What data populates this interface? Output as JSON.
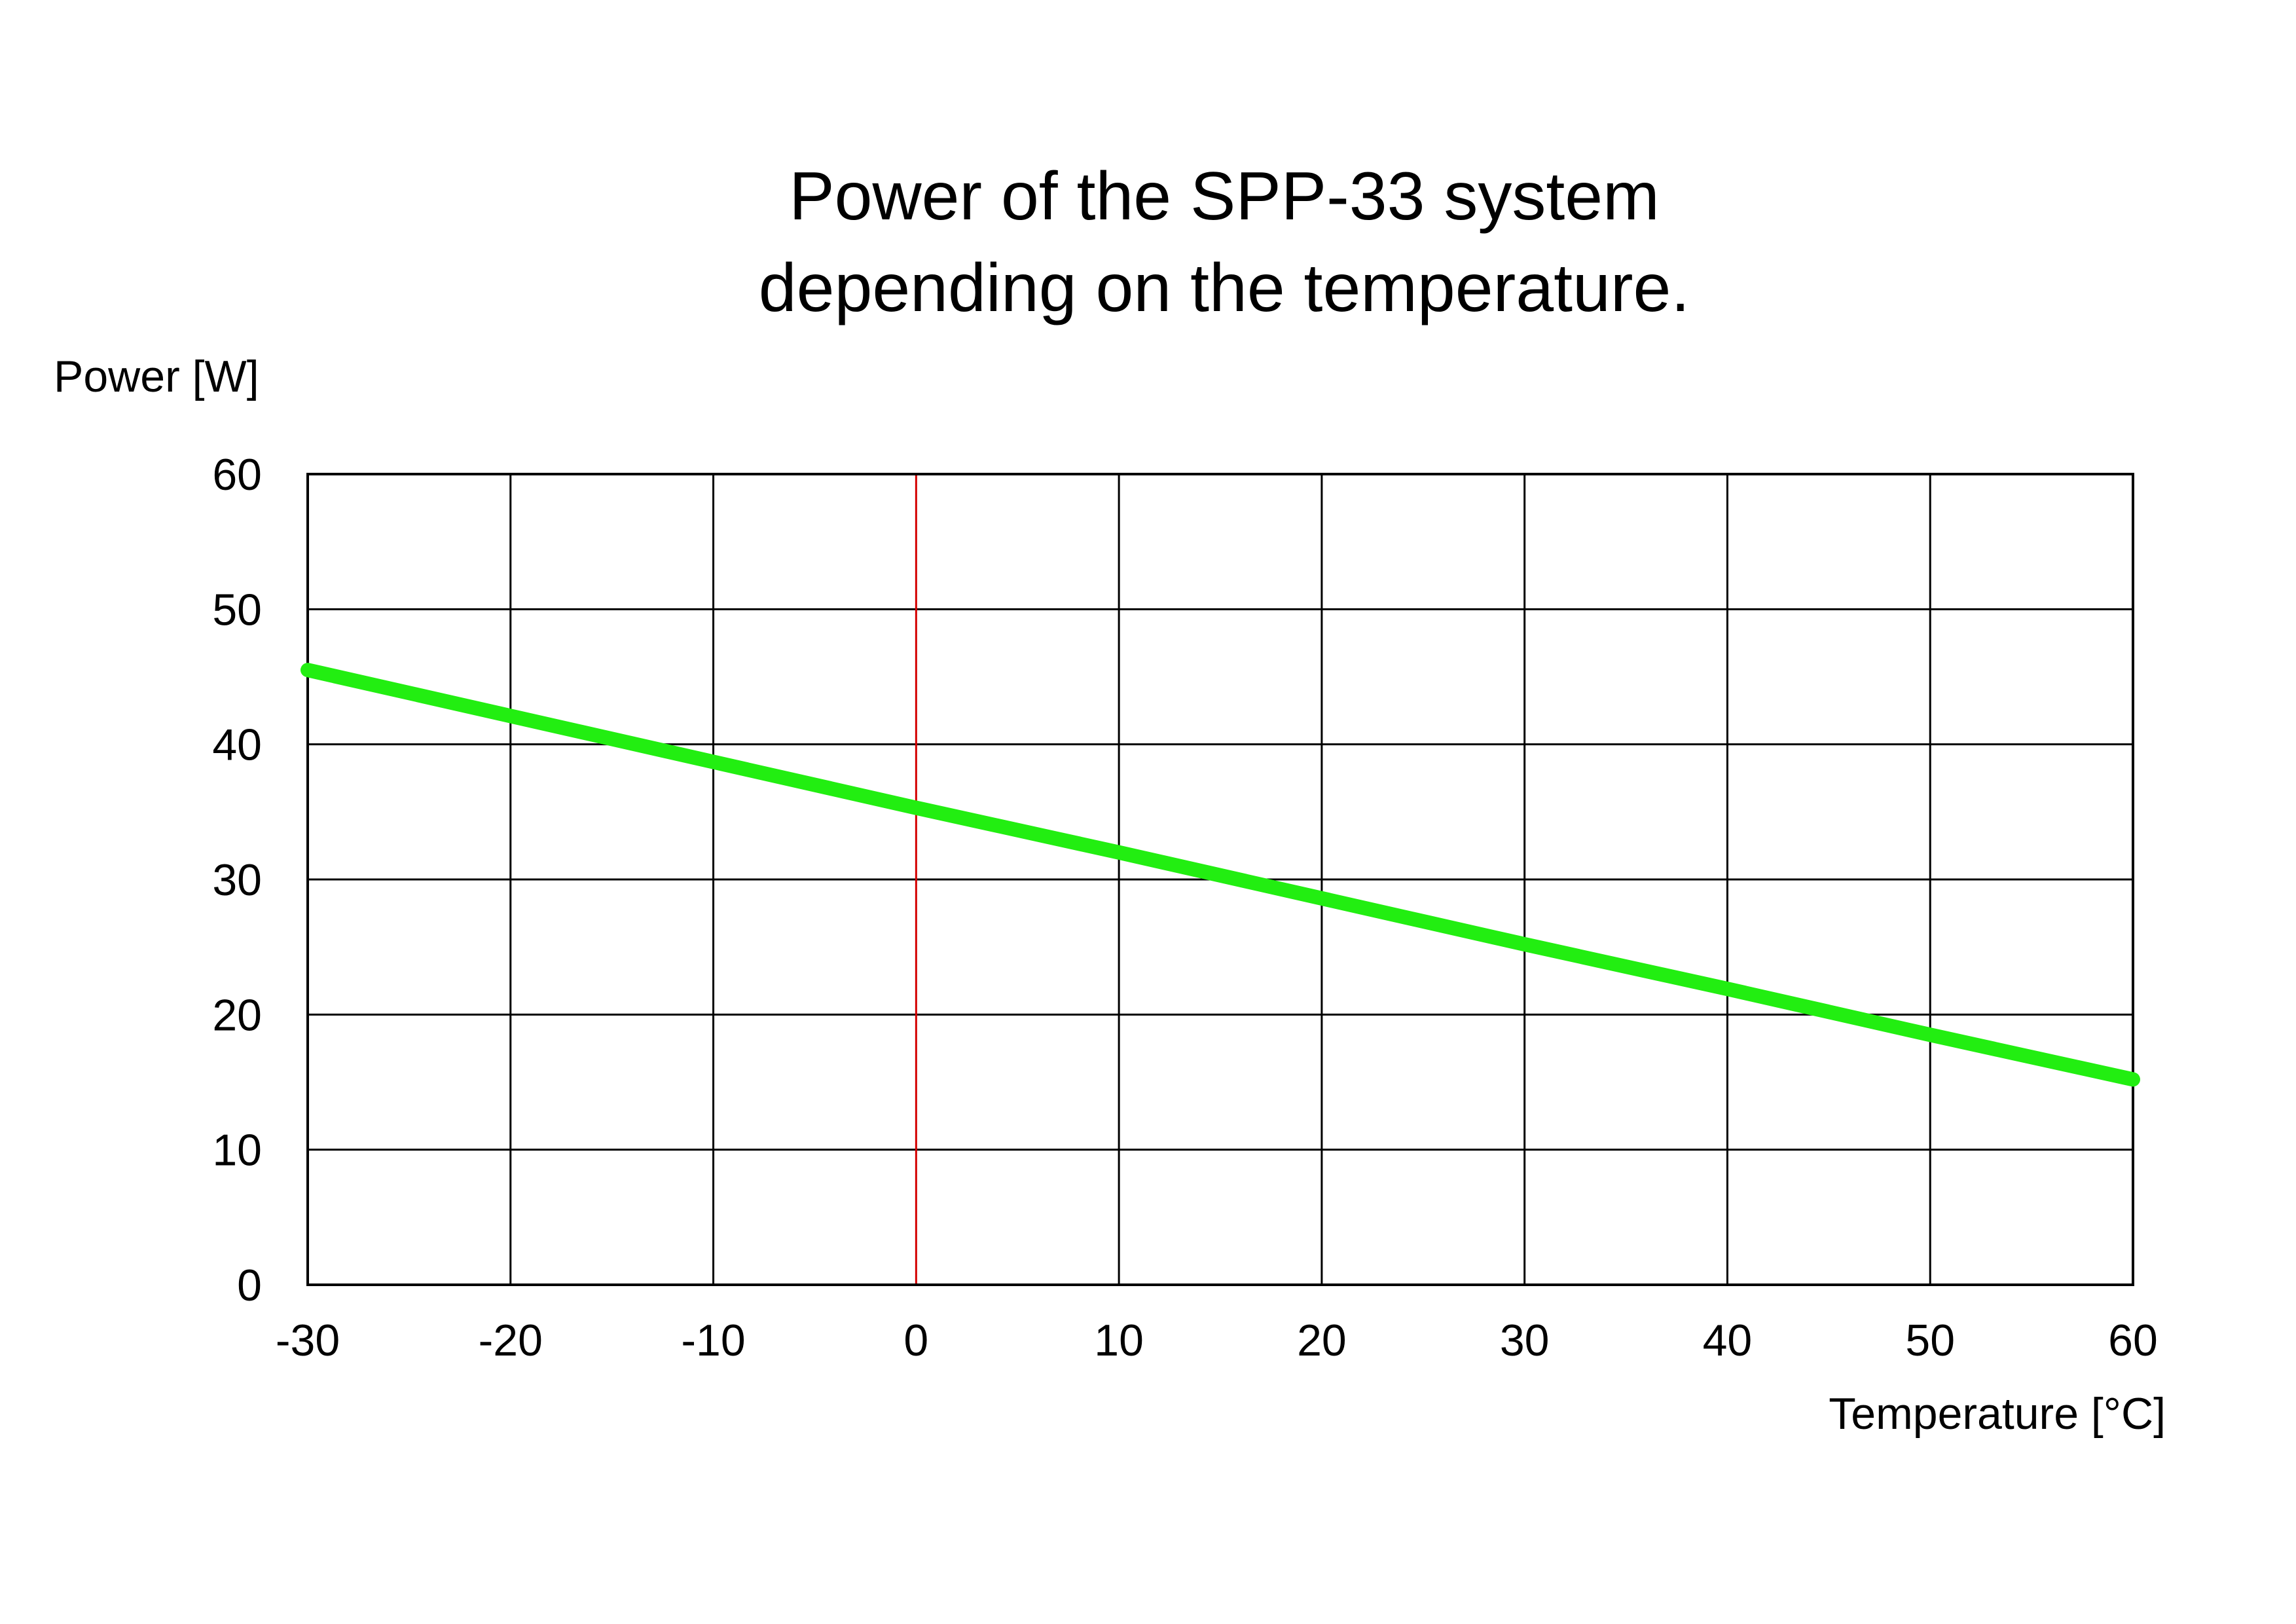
{
  "chart_data": {
    "type": "line",
    "title_lines": [
      "Power of the SPP-33 system",
      "depending on the temperature."
    ],
    "xlabel": "Temperature [°C]",
    "ylabel": "Power [W]",
    "xlim": [
      -30,
      60
    ],
    "ylim": [
      0,
      60
    ],
    "x_ticks": [
      -30,
      -20,
      -10,
      0,
      10,
      20,
      30,
      40,
      50,
      60
    ],
    "y_ticks": [
      0,
      10,
      20,
      30,
      40,
      50,
      60
    ],
    "grid": true,
    "zero_line": {
      "x": 0,
      "color": "#d40000"
    },
    "series": [
      {
        "x": [
          -30,
          -20,
          -10,
          0,
          10,
          20,
          30,
          40,
          50,
          60
        ],
        "y": [
          45.5,
          42.1,
          38.7,
          35.3,
          32.0,
          28.6,
          25.2,
          21.9,
          18.5,
          15.2
        ],
        "color": "#22ee11"
      }
    ]
  }
}
